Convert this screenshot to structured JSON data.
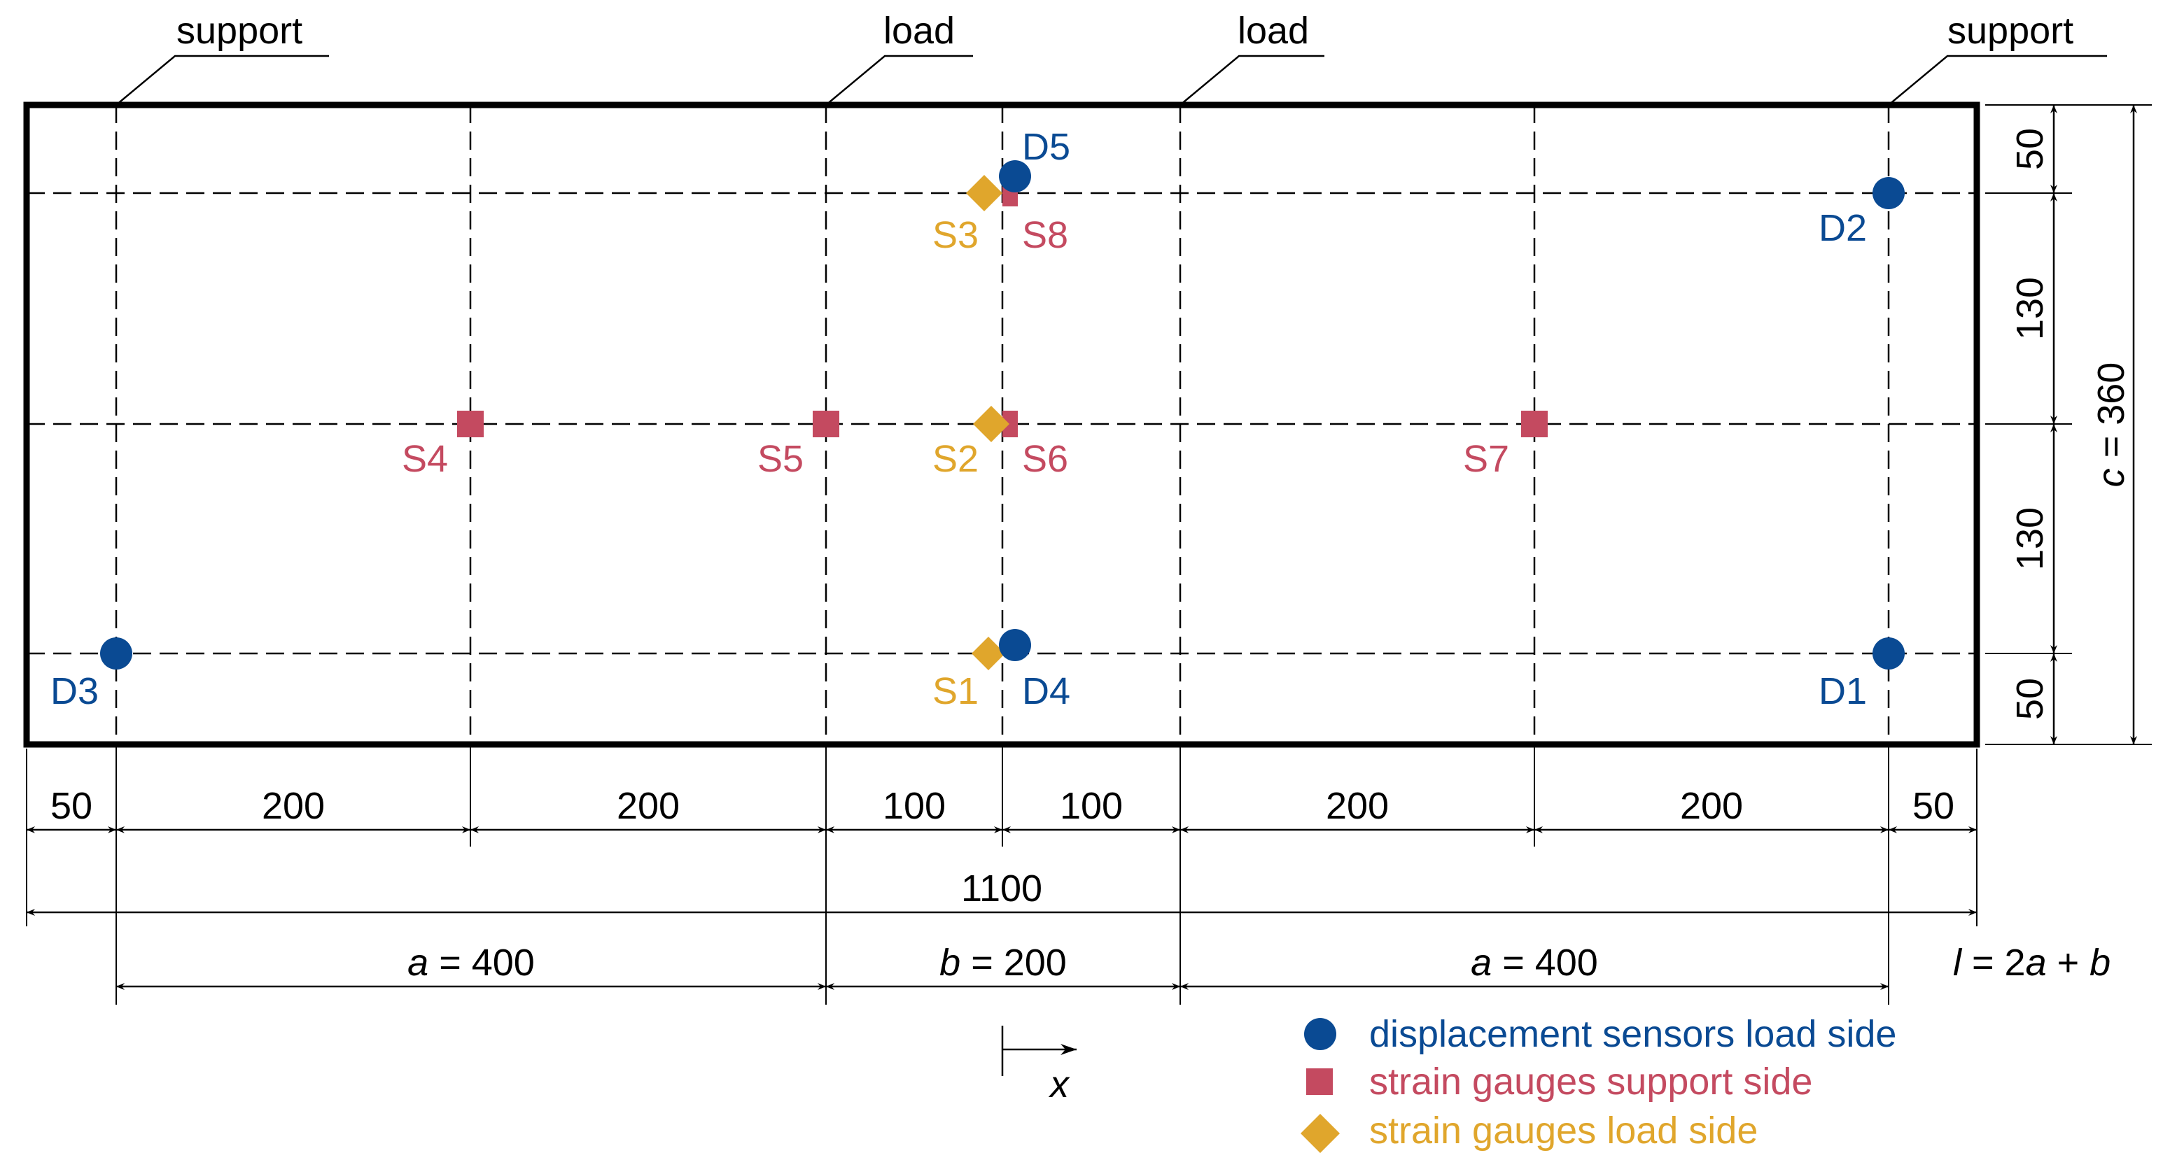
{
  "top_labels": {
    "support_left": "support",
    "load_left": "load",
    "load_right": "load",
    "support_right": "support"
  },
  "displacement_sensors": {
    "d1": "D1",
    "d2": "D2",
    "d3": "D3",
    "d4": "D4",
    "d5": "D5"
  },
  "strain_gauges": {
    "s1": "S1",
    "s2": "S2",
    "s3": "S3",
    "s4": "S4",
    "s5": "S5",
    "s6": "S6",
    "s7": "S7",
    "s8": "S8"
  },
  "dims_horizontal": [
    "50",
    "200",
    "200",
    "100",
    "100",
    "200",
    "200",
    "50"
  ],
  "dim_total": "1100",
  "dim_a_left": {
    "var": "a",
    "rest": " = 400"
  },
  "dim_b": {
    "var": "b",
    "rest": " = 200"
  },
  "dim_a_right": {
    "var": "a",
    "rest": " = 400"
  },
  "dim_l": {
    "var_l": "l",
    "mid": " = 2",
    "var_a": "a",
    "plus": " + ",
    "var_b": "b"
  },
  "dims_vertical": [
    "50",
    "130",
    "130",
    "50"
  ],
  "dim_c": {
    "var": "c",
    "rest": " = 360"
  },
  "axis_label": "x",
  "legend": {
    "displacement": "displacement sensors load side",
    "strain_support": "strain gauges support side",
    "strain_load": "strain gauges load side"
  },
  "colors": {
    "blue": "#0a4a93",
    "red": "#c44a60",
    "gold": "#e0a62c"
  }
}
